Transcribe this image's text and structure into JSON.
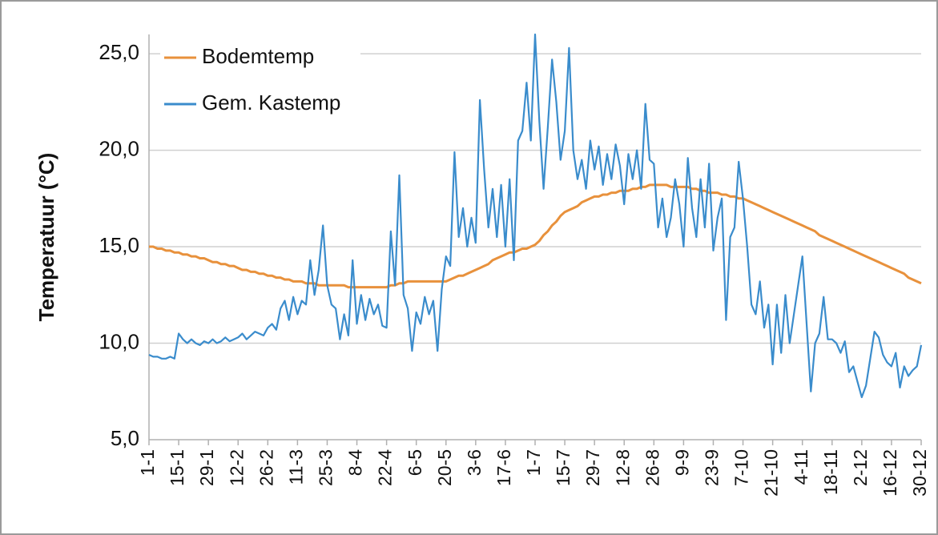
{
  "chart_data": {
    "type": "line",
    "y_label": "Temperatuur  (°C)",
    "categories": [
      "1-1",
      null,
      null,
      null,
      null,
      null,
      null,
      "15-1",
      null,
      null,
      null,
      null,
      null,
      null,
      "29-1",
      null,
      null,
      null,
      null,
      null,
      null,
      "12-2",
      null,
      null,
      null,
      null,
      null,
      null,
      "26-2",
      null,
      null,
      null,
      null,
      null,
      null,
      "11-3",
      null,
      null,
      null,
      null,
      null,
      null,
      "25-3",
      null,
      null,
      null,
      null,
      null,
      null,
      "8-4",
      null,
      null,
      null,
      null,
      null,
      null,
      "22-4",
      null,
      null,
      null,
      null,
      null,
      null,
      "6-5",
      null,
      null,
      null,
      null,
      null,
      null,
      "20-5",
      null,
      null,
      null,
      null,
      null,
      null,
      "3-6",
      null,
      null,
      null,
      null,
      null,
      null,
      "17-6",
      null,
      null,
      null,
      null,
      null,
      null,
      "1-7",
      null,
      null,
      null,
      null,
      null,
      null,
      "15-7",
      null,
      null,
      null,
      null,
      null,
      null,
      "29-7",
      null,
      null,
      null,
      null,
      null,
      null,
      "12-8",
      null,
      null,
      null,
      null,
      null,
      null,
      "26-8",
      null,
      null,
      null,
      null,
      null,
      null,
      "9-9",
      null,
      null,
      null,
      null,
      null,
      null,
      "23-9",
      null,
      null,
      null,
      null,
      null,
      null,
      "7-10",
      null,
      null,
      null,
      null,
      null,
      null,
      "21-10",
      null,
      null,
      null,
      null,
      null,
      null,
      "4-11",
      null,
      null,
      null,
      null,
      null,
      null,
      "18-11",
      null,
      null,
      null,
      null,
      null,
      null,
      "2-12",
      null,
      null,
      null,
      null,
      null,
      null,
      "16-12",
      null,
      null,
      null,
      null,
      null,
      null,
      "30-12"
    ],
    "series": [
      {
        "name": "Bodemtemp",
        "color": "#e8913c",
        "values": [
          15.0,
          15.0,
          14.9,
          14.9,
          14.8,
          14.8,
          14.7,
          14.7,
          14.6,
          14.6,
          14.5,
          14.5,
          14.4,
          14.4,
          14.3,
          14.2,
          14.2,
          14.1,
          14.1,
          14.0,
          14.0,
          13.9,
          13.8,
          13.8,
          13.7,
          13.7,
          13.6,
          13.6,
          13.5,
          13.5,
          13.4,
          13.4,
          13.3,
          13.3,
          13.2,
          13.2,
          13.2,
          13.1,
          13.1,
          13.1,
          13.0,
          13.0,
          13.0,
          13.0,
          13.0,
          13.0,
          13.0,
          12.9,
          12.9,
          12.9,
          12.9,
          12.9,
          12.9,
          12.9,
          12.9,
          12.9,
          12.9,
          13.0,
          13.0,
          13.1,
          13.1,
          13.2,
          13.2,
          13.2,
          13.2,
          13.2,
          13.2,
          13.2,
          13.2,
          13.2,
          13.2,
          13.3,
          13.4,
          13.5,
          13.5,
          13.6,
          13.7,
          13.8,
          13.9,
          14.0,
          14.1,
          14.3,
          14.4,
          14.5,
          14.6,
          14.7,
          14.7,
          14.8,
          14.9,
          14.9,
          15.0,
          15.1,
          15.3,
          15.6,
          15.8,
          16.1,
          16.3,
          16.6,
          16.8,
          16.9,
          17.0,
          17.1,
          17.3,
          17.4,
          17.5,
          17.6,
          17.6,
          17.7,
          17.7,
          17.8,
          17.8,
          17.9,
          17.9,
          17.9,
          18.0,
          18.0,
          18.1,
          18.1,
          18.2,
          18.2,
          18.2,
          18.2,
          18.2,
          18.1,
          18.1,
          18.1,
          18.1,
          18.1,
          18.0,
          18.0,
          17.9,
          17.9,
          17.8,
          17.8,
          17.8,
          17.7,
          17.7,
          17.6,
          17.6,
          17.5,
          17.5,
          17.4,
          17.3,
          17.2,
          17.1,
          17.0,
          16.9,
          16.8,
          16.7,
          16.6,
          16.5,
          16.4,
          16.3,
          16.2,
          16.1,
          16.0,
          15.9,
          15.8,
          15.6,
          15.5,
          15.4,
          15.3,
          15.2,
          15.1,
          15.0,
          14.9,
          14.8,
          14.7,
          14.6,
          14.5,
          14.4,
          14.3,
          14.2,
          14.1,
          14.0,
          13.9,
          13.8,
          13.7,
          13.6,
          13.4,
          13.3,
          13.2,
          13.1
        ]
      },
      {
        "name": "Gem. Kastemp",
        "color": "#3a8ccc",
        "values": [
          9.4,
          9.3,
          9.3,
          9.2,
          9.2,
          9.3,
          9.2,
          10.5,
          10.2,
          10.0,
          10.2,
          10.0,
          9.9,
          10.1,
          10.0,
          10.2,
          10.0,
          10.1,
          10.3,
          10.1,
          10.2,
          10.3,
          10.5,
          10.2,
          10.4,
          10.6,
          10.5,
          10.4,
          10.8,
          11.0,
          10.7,
          11.8,
          12.2,
          11.2,
          12.4,
          11.5,
          12.2,
          12.0,
          14.3,
          12.5,
          13.8,
          16.1,
          13.0,
          12.0,
          11.8,
          10.2,
          11.5,
          10.4,
          14.3,
          11.0,
          12.5,
          11.2,
          12.3,
          11.5,
          12.0,
          10.9,
          10.8,
          15.8,
          13.0,
          18.7,
          12.5,
          11.8,
          9.6,
          11.6,
          11.0,
          12.4,
          11.5,
          12.2,
          9.6,
          12.8,
          14.5,
          14.0,
          19.9,
          15.5,
          17.0,
          15.0,
          16.5,
          15.2,
          22.6,
          19.0,
          16.0,
          18.0,
          15.5,
          18.2,
          15.0,
          18.5,
          14.3,
          20.5,
          21.0,
          23.5,
          20.5,
          26.0,
          21.5,
          18.0,
          21.2,
          24.7,
          22.5,
          19.5,
          21.0,
          25.3,
          20.0,
          18.5,
          19.5,
          18.0,
          20.5,
          19.0,
          20.2,
          18.2,
          19.8,
          18.5,
          20.3,
          19.2,
          17.2,
          19.8,
          18.5,
          20.0,
          18.0,
          22.4,
          19.5,
          19.3,
          16.0,
          17.5,
          15.5,
          16.5,
          18.5,
          17.2,
          15.0,
          19.6,
          17.0,
          15.5,
          18.5,
          16.0,
          19.3,
          14.8,
          16.5,
          17.5,
          11.2,
          15.5,
          16.0,
          19.4,
          17.5,
          15.0,
          12.0,
          11.5,
          13.2,
          10.8,
          12.0,
          8.9,
          12.0,
          9.5,
          12.5,
          10.0,
          11.5,
          13.0,
          14.5,
          11.0,
          7.5,
          10.0,
          10.5,
          12.4,
          10.2,
          10.2,
          10.0,
          9.5,
          10.1,
          8.5,
          8.8,
          8.0,
          7.2,
          7.8,
          9.2,
          10.6,
          10.3,
          9.4,
          9.0,
          8.8,
          9.5,
          7.7,
          8.8,
          8.3,
          8.6,
          8.8,
          9.9
        ]
      }
    ],
    "ylim": [
      5,
      26
    ],
    "yticks": [
      {
        "value": 5,
        "label": "5,0"
      },
      {
        "value": 10,
        "label": "10,0"
      },
      {
        "value": 15,
        "label": "15,0"
      },
      {
        "value": 20,
        "label": "20,0"
      },
      {
        "value": 25,
        "label": "25,0"
      }
    ],
    "grid": true,
    "legend": "top-left"
  }
}
